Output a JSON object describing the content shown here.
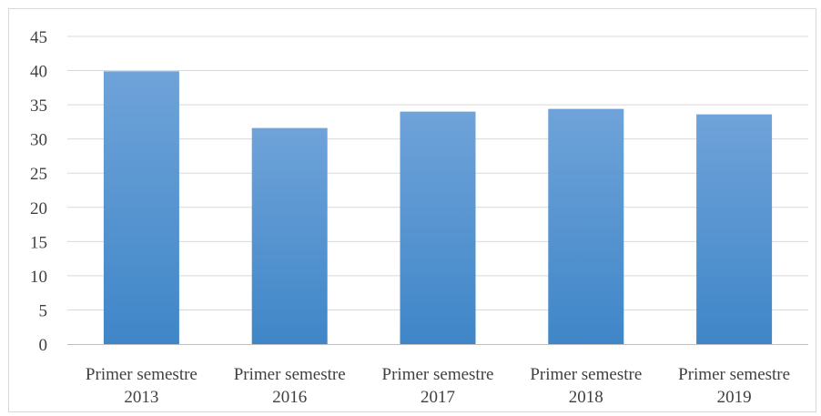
{
  "chart_data": {
    "type": "bar",
    "title": "",
    "xlabel": "",
    "ylabel": "",
    "categories": [
      [
        "Primer semestre",
        "2013"
      ],
      [
        "Primer semestre",
        "2016"
      ],
      [
        "Primer semestre",
        "2017"
      ],
      [
        "Primer semestre",
        "2018"
      ],
      [
        "Primer semestre",
        "2019"
      ]
    ],
    "values": [
      39.9,
      31.6,
      34.0,
      34.4,
      33.6
    ],
    "ylim": [
      0,
      45
    ],
    "yticks": [
      0,
      5,
      10,
      15,
      20,
      25,
      30,
      35,
      40,
      45
    ],
    "grid": true,
    "legend": "none",
    "bar_color_top": "#6fa3d9",
    "bar_color_bottom": "#3f86c8"
  }
}
